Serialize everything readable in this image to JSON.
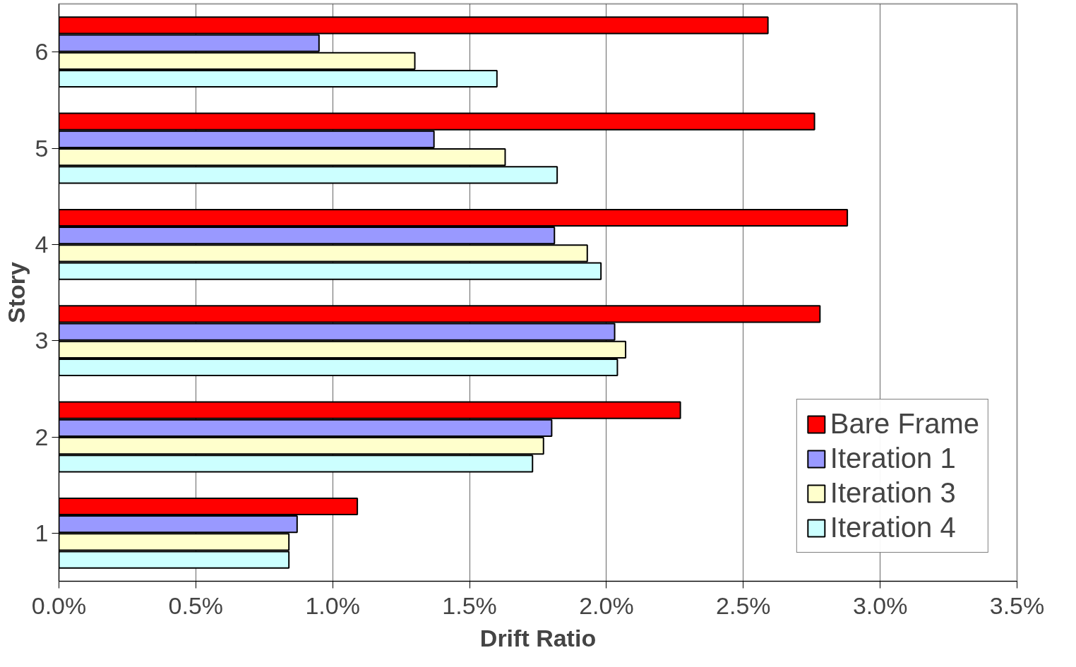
{
  "chart_data": {
    "type": "bar",
    "orientation": "horizontal",
    "xlabel": "Drift Ratio",
    "ylabel": "Story",
    "categories": [
      "6",
      "5",
      "4",
      "3",
      "2",
      "1"
    ],
    "series": [
      {
        "name": "Bare Frame",
        "color": "#ff0000",
        "values": [
          2.59,
          2.76,
          2.88,
          2.78,
          2.27,
          1.09
        ]
      },
      {
        "name": "Iteration 1",
        "color": "#9999ff",
        "values": [
          0.95,
          1.37,
          1.81,
          2.03,
          1.8,
          0.87
        ]
      },
      {
        "name": "Iteration 3",
        "color": "#ffffcc",
        "values": [
          1.3,
          1.63,
          1.93,
          2.07,
          1.77,
          0.84
        ]
      },
      {
        "name": "Iteration 4",
        "color": "#ccffff",
        "values": [
          1.6,
          1.82,
          1.98,
          2.04,
          1.73,
          0.84
        ]
      }
    ],
    "xlim": [
      0,
      3.5
    ],
    "xticks": [
      {
        "value": 0,
        "label": "0.0%"
      },
      {
        "value": 0.5,
        "label": "0.5%"
      },
      {
        "value": 1,
        "label": "1.0%"
      },
      {
        "value": 1.5,
        "label": "1.5%"
      },
      {
        "value": 2,
        "label": "2.0%"
      },
      {
        "value": 2.5,
        "label": "2.5%"
      },
      {
        "value": 3,
        "label": "3.0%"
      },
      {
        "value": 3.5,
        "label": "3.5%"
      }
    ],
    "grid": "x",
    "legend": "bottom right"
  }
}
